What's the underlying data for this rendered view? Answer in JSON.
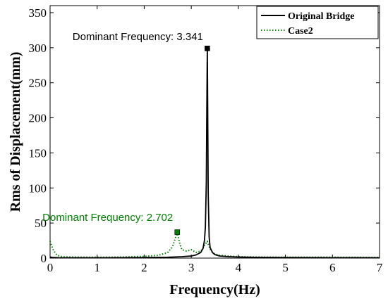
{
  "chart_data": {
    "type": "line",
    "xlabel": "Frequency(Hz)",
    "ylabel": "Rms of Displacement(mm)",
    "xlim": [
      0,
      7
    ],
    "ylim": [
      0,
      360
    ],
    "xticks": [
      "0",
      "1",
      "2",
      "3",
      "4",
      "5",
      "6",
      "7"
    ],
    "yticks": [
      "0",
      "50",
      "100",
      "150",
      "200",
      "250",
      "300",
      "350"
    ],
    "grid": false,
    "legend_position": "top-right",
    "series": [
      {
        "name": "Original Bridge",
        "color": "#000000",
        "style": "solid",
        "x": [
          0,
          0.05,
          0.1,
          0.2,
          0.5,
          1.0,
          1.5,
          2.0,
          2.5,
          2.8,
          3.0,
          3.1,
          3.2,
          3.25,
          3.28,
          3.3,
          3.32,
          3.33,
          3.341,
          3.35,
          3.36,
          3.38,
          3.4,
          3.45,
          3.5,
          3.6,
          3.8,
          4.0,
          4.5,
          5.0,
          6.0,
          7.0
        ],
        "y": [
          1.5,
          1.0,
          0.8,
          0.5,
          0.5,
          0.5,
          0.6,
          0.8,
          1.2,
          2.0,
          3.0,
          4.5,
          8,
          14,
          25,
          45,
          110,
          210,
          299,
          200,
          90,
          30,
          15,
          8,
          5,
          3,
          2,
          1.5,
          1,
          0.8,
          0.6,
          0.5
        ]
      },
      {
        "name": "Case2",
        "color": "#008000",
        "style": "dotted",
        "x": [
          0,
          0.03,
          0.08,
          0.15,
          0.25,
          0.5,
          1.0,
          1.5,
          2.0,
          2.3,
          2.5,
          2.6,
          2.65,
          2.702,
          2.75,
          2.8,
          2.9,
          3.0,
          3.1,
          3.2,
          3.25,
          3.3,
          3.32,
          3.341,
          3.37,
          3.42,
          3.5,
          3.6,
          3.8,
          4.0,
          4.5,
          5.0,
          6.0,
          7.0
        ],
        "y": [
          24,
          18,
          10,
          4,
          2,
          1.5,
          1.2,
          1.5,
          2.5,
          4,
          8,
          16,
          26,
          37,
          22,
          12,
          10,
          12,
          8,
          10,
          14,
          20,
          22,
          24,
          18,
          10,
          6,
          4,
          3,
          2,
          1.5,
          1.2,
          1.2,
          1
        ]
      }
    ],
    "annotations": [
      {
        "text": "Dominant Frequency: 3.341",
        "x": 3.341,
        "y": 299,
        "color": "#000000"
      },
      {
        "text": "Dominant Frequency: 2.702",
        "x": 2.702,
        "y": 37,
        "color": "#008000"
      }
    ]
  }
}
